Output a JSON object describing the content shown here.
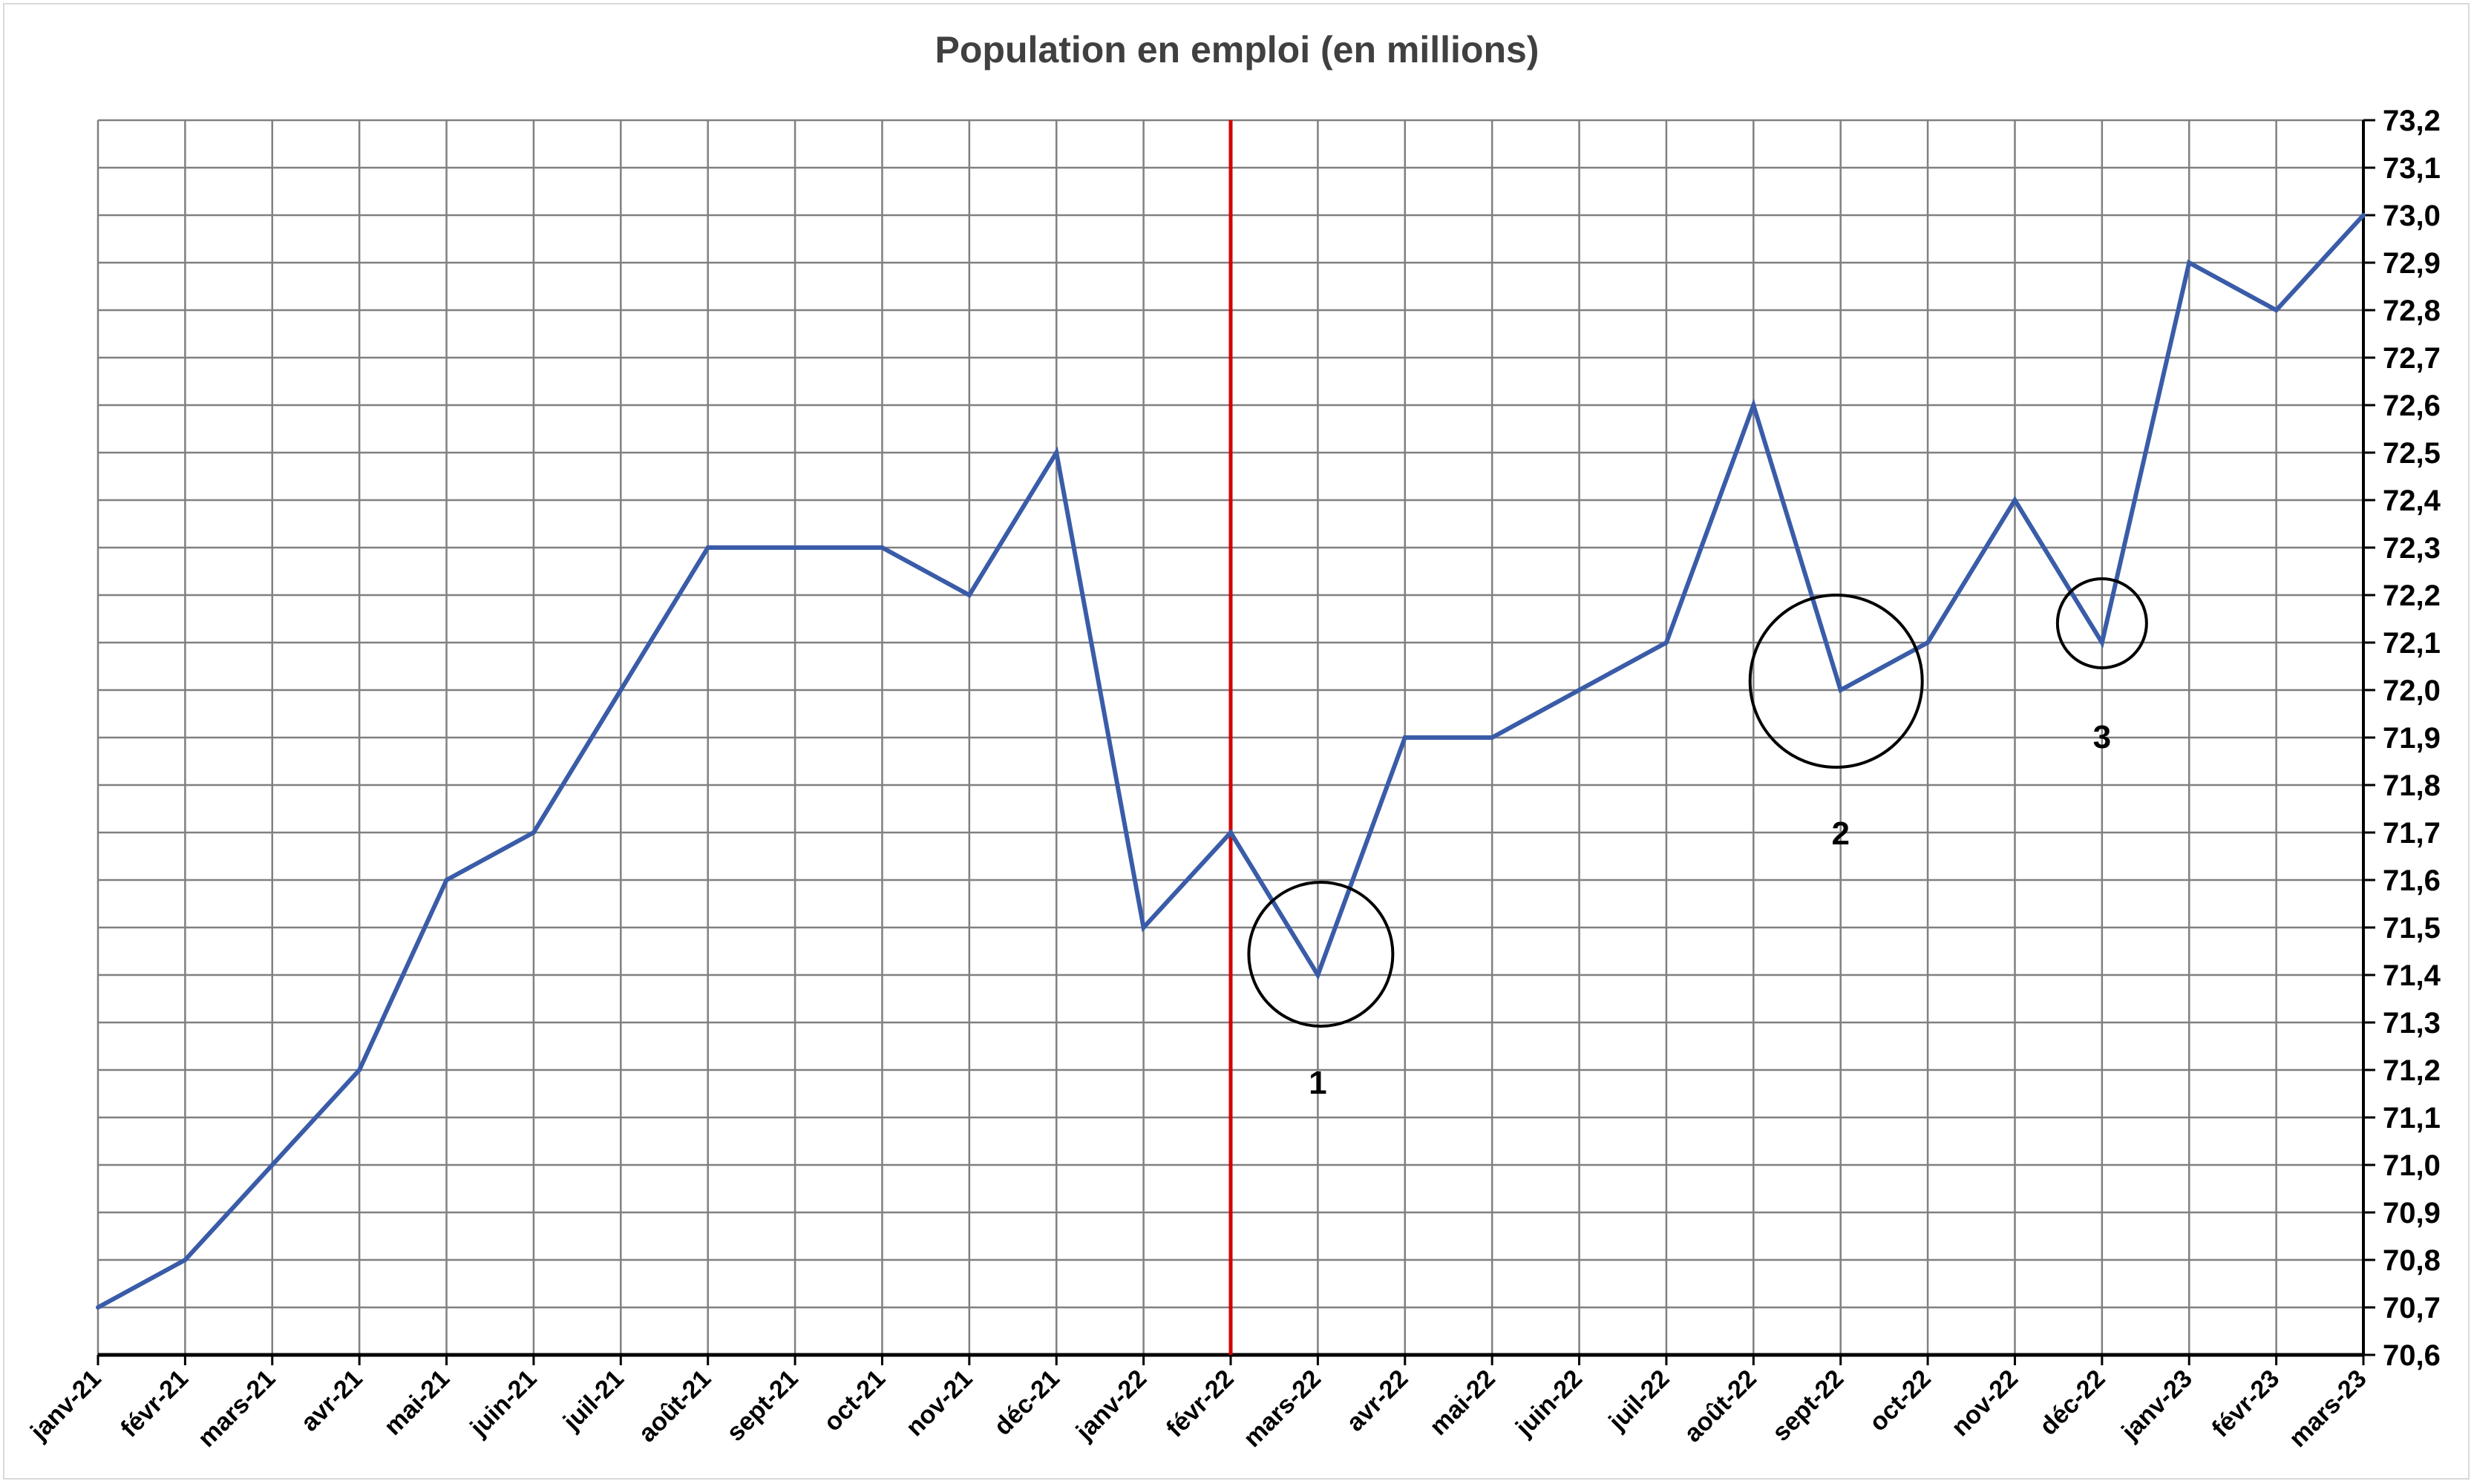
{
  "chart_data": {
    "type": "line",
    "title": "Population en emploi (en millions)",
    "xlabel": "",
    "ylabel": "",
    "ylim": [
      70.6,
      73.2
    ],
    "y_ticks": [
      "70,6",
      "70,7",
      "70,8",
      "70,9",
      "71,0",
      "71,1",
      "71,2",
      "71,3",
      "71,4",
      "71,5",
      "71,6",
      "71,7",
      "71,8",
      "71,9",
      "72,0",
      "72,1",
      "72,2",
      "72,3",
      "72,4",
      "72,5",
      "72,6",
      "72,7",
      "72,8",
      "72,9",
      "73,0",
      "73,1",
      "73,2"
    ],
    "grid": true,
    "categories": [
      "janv-21",
      "févr-21",
      "mars-21",
      "avr-21",
      "mai-21",
      "juin-21",
      "juil-21",
      "août-21",
      "sept-21",
      "oct-21",
      "nov-21",
      "déc-21",
      "janv-22",
      "févr-22",
      "mars-22",
      "avr-22",
      "mai-22",
      "juin-22",
      "juil-22",
      "août-22",
      "sept-22",
      "oct-22",
      "nov-22",
      "déc-22",
      "janv-23",
      "févr-23",
      "mars-23"
    ],
    "series": [
      {
        "values": [
          70.7,
          70.8,
          71.0,
          71.2,
          71.6,
          71.7,
          72.0,
          72.3,
          72.3,
          72.3,
          72.2,
          72.5,
          71.5,
          71.7,
          71.4,
          71.9,
          71.9,
          72.0,
          72.1,
          72.6,
          72.0,
          72.1,
          72.4,
          72.1,
          72.9,
          72.8,
          73.0
        ],
        "color": "#3a5ca8"
      }
    ],
    "reference_line": {
      "category": "févr-22",
      "color": "#d40000"
    },
    "annotations": [
      {
        "label": "1",
        "category": "mars-22",
        "value": 71.4
      },
      {
        "label": "2",
        "category": "sept-22",
        "value": 72.0
      },
      {
        "label": "3",
        "category": "déc-22",
        "value": 72.1
      }
    ]
  }
}
